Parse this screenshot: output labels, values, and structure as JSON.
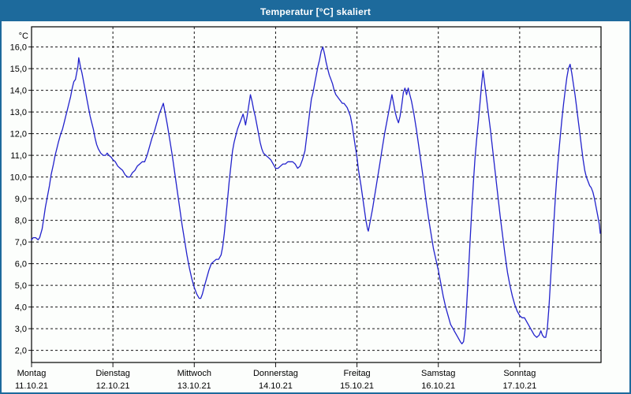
{
  "window": {
    "title": "Temperatur [°C] skaliert",
    "titlebar_color": "#1d6a9c",
    "border_color": "#1d6a9c",
    "background_color": "#fcfefc"
  },
  "chart_data": {
    "type": "line",
    "title": "Temperatur [°C] skaliert",
    "ylabel": "°C",
    "xlabel": "",
    "grid": "dashed",
    "legend": "none",
    "line_color": "#2222cc",
    "grid_color": "#141414",
    "ylim": [
      1.44,
      16.93
    ],
    "xlim_days": [
      0,
      7
    ],
    "y_ticks": [
      {
        "value": 16,
        "label": "16,0"
      },
      {
        "value": 15,
        "label": "15,0"
      },
      {
        "value": 14,
        "label": "14,0"
      },
      {
        "value": 13,
        "label": "13,0"
      },
      {
        "value": 12,
        "label": "12,0"
      },
      {
        "value": 11,
        "label": "11,0"
      },
      {
        "value": 10,
        "label": "10,0"
      },
      {
        "value": 9,
        "label": "9,0"
      },
      {
        "value": 8,
        "label": "8,0"
      },
      {
        "value": 7,
        "label": "7,0"
      },
      {
        "value": 6,
        "label": "6,0"
      },
      {
        "value": 5,
        "label": "5,0"
      },
      {
        "value": 4,
        "label": "4,0"
      },
      {
        "value": 3,
        "label": "3,0"
      },
      {
        "value": 2,
        "label": "2,0"
      }
    ],
    "x_days": [
      {
        "name": "Montag",
        "date": "11.10.21"
      },
      {
        "name": "Dienstag",
        "date": "12.10.21"
      },
      {
        "name": "Mittwoch",
        "date": "13.10.21"
      },
      {
        "name": "Donnerstag",
        "date": "14.10.21"
      },
      {
        "name": "Freitag",
        "date": "15.10.21"
      },
      {
        "name": "Samstag",
        "date": "16.10.21"
      },
      {
        "name": "Sonntag",
        "date": "17.10.21"
      }
    ],
    "series": [
      {
        "name": "Temperatur [°C]",
        "points": [
          [
            0.0,
            7.1
          ],
          [
            0.02,
            7.2
          ],
          [
            0.05,
            7.2
          ],
          [
            0.08,
            7.1
          ],
          [
            0.1,
            7.2
          ],
          [
            0.13,
            7.6
          ],
          [
            0.15,
            8.1
          ],
          [
            0.17,
            8.6
          ],
          [
            0.19,
            9.0
          ],
          [
            0.22,
            9.6
          ],
          [
            0.24,
            10.1
          ],
          [
            0.27,
            10.6
          ],
          [
            0.29,
            11.0
          ],
          [
            0.31,
            11.3
          ],
          [
            0.33,
            11.6
          ],
          [
            0.36,
            12.0
          ],
          [
            0.38,
            12.2
          ],
          [
            0.4,
            12.5
          ],
          [
            0.42,
            12.8
          ],
          [
            0.44,
            13.1
          ],
          [
            0.46,
            13.4
          ],
          [
            0.48,
            13.7
          ],
          [
            0.5,
            14.1
          ],
          [
            0.52,
            14.4
          ],
          [
            0.54,
            14.5
          ],
          [
            0.55,
            14.7
          ],
          [
            0.57,
            15.1
          ],
          [
            0.58,
            15.5
          ],
          [
            0.59,
            15.3
          ],
          [
            0.6,
            15.1
          ],
          [
            0.62,
            14.8
          ],
          [
            0.64,
            14.4
          ],
          [
            0.66,
            14.0
          ],
          [
            0.68,
            13.6
          ],
          [
            0.7,
            13.2
          ],
          [
            0.72,
            12.8
          ],
          [
            0.74,
            12.5
          ],
          [
            0.76,
            12.2
          ],
          [
            0.78,
            11.8
          ],
          [
            0.8,
            11.5
          ],
          [
            0.82,
            11.3
          ],
          [
            0.85,
            11.1
          ],
          [
            0.88,
            11.0
          ],
          [
            0.91,
            11.0
          ],
          [
            0.93,
            11.1
          ],
          [
            0.95,
            11.0
          ],
          [
            0.98,
            10.9
          ],
          [
            1.0,
            10.8
          ],
          [
            1.03,
            10.7
          ],
          [
            1.06,
            10.5
          ],
          [
            1.09,
            10.4
          ],
          [
            1.12,
            10.3
          ],
          [
            1.15,
            10.1
          ],
          [
            1.18,
            10.0
          ],
          [
            1.21,
            10.0
          ],
          [
            1.24,
            10.2
          ],
          [
            1.27,
            10.3
          ],
          [
            1.3,
            10.5
          ],
          [
            1.33,
            10.6
          ],
          [
            1.36,
            10.7
          ],
          [
            1.39,
            10.7
          ],
          [
            1.42,
            11.0
          ],
          [
            1.45,
            11.4
          ],
          [
            1.48,
            11.8
          ],
          [
            1.51,
            12.1
          ],
          [
            1.54,
            12.5
          ],
          [
            1.57,
            12.9
          ],
          [
            1.6,
            13.2
          ],
          [
            1.62,
            13.4
          ],
          [
            1.64,
            13.0
          ],
          [
            1.67,
            12.4
          ],
          [
            1.7,
            11.7
          ],
          [
            1.73,
            11.0
          ],
          [
            1.76,
            10.2
          ],
          [
            1.79,
            9.4
          ],
          [
            1.82,
            8.6
          ],
          [
            1.85,
            7.8
          ],
          [
            1.88,
            7.1
          ],
          [
            1.91,
            6.4
          ],
          [
            1.94,
            5.8
          ],
          [
            1.97,
            5.3
          ],
          [
            2.0,
            4.9
          ],
          [
            2.03,
            4.6
          ],
          [
            2.06,
            4.4
          ],
          [
            2.08,
            4.4
          ],
          [
            2.1,
            4.6
          ],
          [
            2.12,
            4.9
          ],
          [
            2.15,
            5.3
          ],
          [
            2.18,
            5.7
          ],
          [
            2.21,
            6.0
          ],
          [
            2.24,
            6.1
          ],
          [
            2.27,
            6.2
          ],
          [
            2.3,
            6.2
          ],
          [
            2.33,
            6.4
          ],
          [
            2.35,
            6.8
          ],
          [
            2.37,
            7.4
          ],
          [
            2.39,
            8.2
          ],
          [
            2.41,
            9.0
          ],
          [
            2.43,
            9.8
          ],
          [
            2.45,
            10.5
          ],
          [
            2.47,
            11.2
          ],
          [
            2.49,
            11.6
          ],
          [
            2.51,
            11.9
          ],
          [
            2.53,
            12.2
          ],
          [
            2.55,
            12.4
          ],
          [
            2.57,
            12.6
          ],
          [
            2.59,
            12.8
          ],
          [
            2.6,
            12.9
          ],
          [
            2.62,
            12.6
          ],
          [
            2.63,
            12.4
          ],
          [
            2.65,
            12.8
          ],
          [
            2.67,
            13.3
          ],
          [
            2.69,
            13.8
          ],
          [
            2.71,
            13.5
          ],
          [
            2.73,
            13.1
          ],
          [
            2.75,
            12.8
          ],
          [
            2.77,
            12.4
          ],
          [
            2.79,
            12.0
          ],
          [
            2.81,
            11.6
          ],
          [
            2.83,
            11.3
          ],
          [
            2.85,
            11.1
          ],
          [
            2.88,
            11.0
          ],
          [
            2.91,
            10.9
          ],
          [
            2.94,
            10.8
          ],
          [
            2.97,
            10.6
          ],
          [
            3.0,
            10.4
          ],
          [
            3.03,
            10.4
          ],
          [
            3.06,
            10.5
          ],
          [
            3.09,
            10.6
          ],
          [
            3.12,
            10.6
          ],
          [
            3.15,
            10.7
          ],
          [
            3.18,
            10.7
          ],
          [
            3.21,
            10.7
          ],
          [
            3.24,
            10.6
          ],
          [
            3.27,
            10.4
          ],
          [
            3.3,
            10.5
          ],
          [
            3.33,
            10.8
          ],
          [
            3.36,
            11.2
          ],
          [
            3.38,
            11.8
          ],
          [
            3.4,
            12.4
          ],
          [
            3.42,
            13.0
          ],
          [
            3.44,
            13.6
          ],
          [
            3.46,
            13.9
          ],
          [
            3.48,
            14.3
          ],
          [
            3.5,
            14.7
          ],
          [
            3.52,
            15.1
          ],
          [
            3.54,
            15.4
          ],
          [
            3.56,
            15.8
          ],
          [
            3.58,
            16.0
          ],
          [
            3.6,
            15.7
          ],
          [
            3.62,
            15.3
          ],
          [
            3.64,
            15.0
          ],
          [
            3.66,
            14.7
          ],
          [
            3.68,
            14.5
          ],
          [
            3.7,
            14.3
          ],
          [
            3.72,
            14.0
          ],
          [
            3.74,
            13.8
          ],
          [
            3.76,
            13.7
          ],
          [
            3.78,
            13.6
          ],
          [
            3.8,
            13.5
          ],
          [
            3.82,
            13.4
          ],
          [
            3.84,
            13.4
          ],
          [
            3.86,
            13.3
          ],
          [
            3.88,
            13.2
          ],
          [
            3.9,
            13.0
          ],
          [
            3.92,
            12.8
          ],
          [
            3.94,
            12.4
          ],
          [
            3.96,
            11.9
          ],
          [
            3.98,
            11.4
          ],
          [
            4.0,
            10.9
          ],
          [
            4.02,
            10.3
          ],
          [
            4.05,
            9.6
          ],
          [
            4.08,
            8.8
          ],
          [
            4.11,
            8.0
          ],
          [
            4.13,
            7.6
          ],
          [
            4.14,
            7.5
          ],
          [
            4.16,
            7.9
          ],
          [
            4.19,
            8.5
          ],
          [
            4.22,
            9.2
          ],
          [
            4.25,
            9.9
          ],
          [
            4.28,
            10.6
          ],
          [
            4.31,
            11.3
          ],
          [
            4.34,
            12.0
          ],
          [
            4.37,
            12.6
          ],
          [
            4.4,
            13.2
          ],
          [
            4.43,
            13.8
          ],
          [
            4.45,
            13.4
          ],
          [
            4.47,
            13.0
          ],
          [
            4.49,
            12.7
          ],
          [
            4.51,
            12.5
          ],
          [
            4.53,
            12.8
          ],
          [
            4.55,
            13.3
          ],
          [
            4.57,
            13.9
          ],
          [
            4.59,
            14.1
          ],
          [
            4.61,
            13.8
          ],
          [
            4.63,
            14.1
          ],
          [
            4.65,
            13.8
          ],
          [
            4.67,
            13.5
          ],
          [
            4.7,
            12.9
          ],
          [
            4.73,
            12.2
          ],
          [
            4.76,
            11.4
          ],
          [
            4.79,
            10.6
          ],
          [
            4.82,
            9.8
          ],
          [
            4.85,
            8.9
          ],
          [
            4.88,
            8.1
          ],
          [
            4.91,
            7.4
          ],
          [
            4.94,
            6.7
          ],
          [
            4.97,
            6.2
          ],
          [
            5.0,
            5.7
          ],
          [
            5.03,
            5.1
          ],
          [
            5.06,
            4.5
          ],
          [
            5.09,
            4.0
          ],
          [
            5.12,
            3.6
          ],
          [
            5.15,
            3.2
          ],
          [
            5.18,
            3.0
          ],
          [
            5.21,
            2.8
          ],
          [
            5.24,
            2.6
          ],
          [
            5.27,
            2.4
          ],
          [
            5.29,
            2.3
          ],
          [
            5.31,
            2.4
          ],
          [
            5.33,
            3.0
          ],
          [
            5.35,
            4.2
          ],
          [
            5.37,
            5.6
          ],
          [
            5.39,
            7.0
          ],
          [
            5.41,
            8.4
          ],
          [
            5.43,
            9.7
          ],
          [
            5.45,
            10.8
          ],
          [
            5.47,
            11.7
          ],
          [
            5.49,
            12.5
          ],
          [
            5.51,
            13.3
          ],
          [
            5.53,
            14.2
          ],
          [
            5.55,
            14.9
          ],
          [
            5.57,
            14.3
          ],
          [
            5.59,
            13.7
          ],
          [
            5.61,
            13.1
          ],
          [
            5.64,
            12.2
          ],
          [
            5.67,
            11.2
          ],
          [
            5.7,
            10.2
          ],
          [
            5.73,
            9.2
          ],
          [
            5.76,
            8.2
          ],
          [
            5.79,
            7.3
          ],
          [
            5.82,
            6.4
          ],
          [
            5.85,
            5.6
          ],
          [
            5.88,
            5.0
          ],
          [
            5.91,
            4.5
          ],
          [
            5.94,
            4.1
          ],
          [
            5.97,
            3.8
          ],
          [
            6.0,
            3.6
          ],
          [
            6.03,
            3.5
          ],
          [
            6.06,
            3.5
          ],
          [
            6.09,
            3.3
          ],
          [
            6.12,
            3.1
          ],
          [
            6.15,
            2.9
          ],
          [
            6.18,
            2.7
          ],
          [
            6.21,
            2.6
          ],
          [
            6.24,
            2.7
          ],
          [
            6.26,
            2.9
          ],
          [
            6.28,
            2.7
          ],
          [
            6.3,
            2.6
          ],
          [
            6.32,
            2.6
          ],
          [
            6.34,
            3.0
          ],
          [
            6.36,
            4.0
          ],
          [
            6.38,
            5.3
          ],
          [
            6.4,
            6.6
          ],
          [
            6.42,
            7.9
          ],
          [
            6.44,
            9.1
          ],
          [
            6.46,
            10.2
          ],
          [
            6.48,
            11.1
          ],
          [
            6.5,
            11.9
          ],
          [
            6.52,
            12.7
          ],
          [
            6.54,
            13.4
          ],
          [
            6.56,
            14.0
          ],
          [
            6.58,
            14.6
          ],
          [
            6.6,
            15.0
          ],
          [
            6.62,
            15.2
          ],
          [
            6.64,
            14.8
          ],
          [
            6.66,
            14.3
          ],
          [
            6.68,
            13.8
          ],
          [
            6.7,
            13.2
          ],
          [
            6.72,
            12.6
          ],
          [
            6.74,
            12.0
          ],
          [
            6.76,
            11.4
          ],
          [
            6.78,
            10.8
          ],
          [
            6.8,
            10.3
          ],
          [
            6.82,
            10.0
          ],
          [
            6.84,
            9.8
          ],
          [
            6.86,
            9.6
          ],
          [
            6.88,
            9.5
          ],
          [
            6.9,
            9.3
          ],
          [
            6.92,
            9.0
          ],
          [
            6.94,
            8.6
          ],
          [
            6.96,
            8.2
          ],
          [
            6.98,
            7.8
          ],
          [
            6.99,
            7.4
          ]
        ]
      }
    ]
  }
}
